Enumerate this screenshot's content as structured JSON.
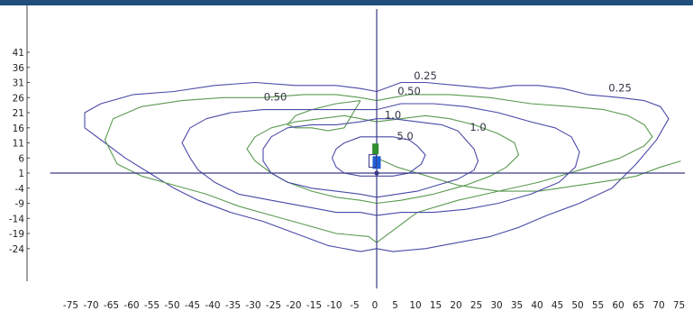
{
  "chart_data": {
    "type": "line",
    "title": "",
    "xlabel": "",
    "ylabel": "",
    "xlim": [
      -75,
      75
    ],
    "ylim": [
      -24,
      41
    ],
    "grid": false,
    "x_ticks": [
      -75,
      -70,
      -65,
      -60,
      -55,
      -50,
      -45,
      -40,
      -35,
      -30,
      -25,
      -20,
      -15,
      -10,
      -5,
      0,
      5,
      10,
      15,
      20,
      25,
      30,
      35,
      40,
      45,
      50,
      55,
      60,
      65,
      70,
      75
    ],
    "y_ticks": [
      41,
      36,
      31,
      26,
      21,
      16,
      11,
      6,
      1,
      -4,
      -9,
      -14,
      -19,
      -24
    ],
    "axis_cross": {
      "x": 0,
      "y": 1
    },
    "colors": {
      "blue": "#4a4aa8",
      "green": "#5a9a50",
      "axis": "#3a3a86",
      "header": "#1f4e7a",
      "marker_blue": "#1f5fd6",
      "marker_green": "#2f8f2f"
    },
    "contour_labels": [
      {
        "text": "0.25",
        "x": 12,
        "y": 32,
        "color": "blue"
      },
      {
        "text": "0.25",
        "x": 60,
        "y": 28,
        "color": "blue"
      },
      {
        "text": "0.50",
        "x": 8,
        "y": 27,
        "color": "blue"
      },
      {
        "text": "0.50",
        "x": -25,
        "y": 25,
        "color": "blue"
      },
      {
        "text": "1.0",
        "x": 4,
        "y": 19,
        "color": "blue"
      },
      {
        "text": "1.0",
        "x": 25,
        "y": 15,
        "color": "blue"
      },
      {
        "text": "5.0",
        "x": 7,
        "y": 12,
        "color": "blue"
      }
    ],
    "series": [
      {
        "color": "blue",
        "x": [
          0,
          6,
          12,
          20,
          28,
          34,
          40,
          46,
          52,
          60,
          66,
          70,
          72,
          69,
          64,
          58,
          50,
          42,
          35,
          28,
          20,
          12,
          4,
          0,
          -4,
          -12,
          -20,
          -28,
          -36,
          -44,
          -50,
          -56,
          -62,
          -67,
          -72,
          -72,
          -68,
          -60,
          -50,
          -40,
          -30,
          -20,
          -10,
          -4,
          0
        ],
        "y": [
          28,
          31,
          31,
          30,
          29,
          30,
          30,
          29,
          27,
          26,
          25,
          23,
          19,
          12,
          4,
          -4,
          -9,
          -13,
          -17,
          -20,
          -22,
          -24,
          -25,
          -24,
          -25,
          -23,
          -19,
          -15,
          -12,
          -8,
          -4,
          1,
          6,
          11,
          16,
          21,
          24,
          27,
          28,
          30,
          31,
          30,
          30,
          29,
          28
        ]
      },
      {
        "color": "green",
        "x": [
          0,
          8,
          18,
          28,
          38,
          48,
          56,
          62,
          66,
          68,
          66,
          60,
          50,
          40,
          30,
          20,
          10,
          2,
          0,
          -2,
          -10,
          -18,
          -26,
          -34,
          -42,
          -50,
          -58,
          -64,
          -67,
          -65,
          -58,
          -48,
          -38,
          -28,
          -18,
          -10,
          -4,
          0
        ],
        "y": [
          25,
          27,
          27,
          26,
          24,
          23,
          22,
          20,
          17,
          13,
          10,
          6,
          2,
          -2,
          -5,
          -8,
          -12,
          -20,
          -22,
          -20,
          -19,
          -16,
          -13,
          -10,
          -6,
          -3,
          0,
          4,
          12,
          19,
          23,
          25,
          26,
          26,
          27,
          27,
          26,
          25
        ]
      },
      {
        "color": "green",
        "x": [
          0,
          5,
          10,
          15,
          20,
          25,
          30,
          35,
          40,
          45,
          50,
          55,
          60,
          64,
          66,
          70,
          75
        ],
        "y": [
          6,
          3,
          1,
          -1,
          -3,
          -4,
          -5,
          -5,
          -5,
          -4,
          -3,
          -2,
          -1,
          0,
          1,
          3,
          5
        ]
      },
      {
        "color": "green",
        "x": [
          -4,
          -10,
          -16,
          -20,
          -22,
          -20,
          -16,
          -12,
          -8,
          -4
        ],
        "y": [
          25,
          24,
          22,
          20,
          17,
          16,
          16,
          15,
          16,
          25
        ]
      },
      {
        "color": "blue",
        "x": [
          0,
          6,
          14,
          22,
          30,
          38,
          44,
          48,
          50,
          49,
          45,
          38,
          30,
          22,
          14,
          6,
          0,
          -4,
          -10,
          -18,
          -26,
          -34,
          -40,
          -44,
          -46,
          -48,
          -46,
          -42,
          -36,
          -28,
          -20,
          -12,
          -4,
          0
        ],
        "y": [
          22,
          24,
          24,
          23,
          21,
          18,
          16,
          13,
          8,
          3,
          -2,
          -6,
          -9,
          -11,
          -12,
          -12,
          -13,
          -12,
          -12,
          -10,
          -8,
          -6,
          -2,
          2,
          6,
          11,
          16,
          19,
          21,
          22,
          22,
          22,
          22,
          22
        ]
      },
      {
        "color": "green",
        "x": [
          0,
          6,
          12,
          18,
          24,
          30,
          34,
          35,
          32,
          28,
          22,
          14,
          6,
          0,
          -4,
          -10,
          -16,
          -22,
          -26,
          -30,
          -32,
          -30,
          -26,
          -20,
          -14,
          -8,
          -4,
          0
        ],
        "y": [
          18,
          19,
          20,
          19,
          17,
          14,
          11,
          7,
          3,
          0,
          -3,
          -6,
          -8,
          -9,
          -8,
          -7,
          -5,
          -2,
          1,
          5,
          9,
          13,
          16,
          18,
          19,
          20,
          19,
          18
        ]
      },
      {
        "color": "blue",
        "x": [
          0,
          4,
          10,
          16,
          20,
          22,
          24,
          25,
          24,
          20,
          15,
          10,
          5,
          0,
          -4,
          -10,
          -16,
          -22,
          -26,
          -28,
          -28,
          -26,
          -22,
          -16,
          -10,
          -4,
          0
        ],
        "y": [
          19,
          19,
          18,
          17,
          15,
          12,
          9,
          5,
          2,
          -1,
          -3,
          -5,
          -6,
          -7,
          -6,
          -5,
          -4,
          -2,
          1,
          5,
          9,
          13,
          16,
          17,
          17,
          18,
          19
        ]
      },
      {
        "color": "blue",
        "x": [
          0,
          4,
          8,
          10,
          12,
          11,
          8,
          4,
          0,
          -4,
          -8,
          -10,
          -11,
          -10,
          -8,
          -4,
          0
        ],
        "y": [
          13,
          13,
          12,
          10,
          7,
          4,
          1,
          0,
          0,
          0,
          1,
          3,
          6,
          9,
          11,
          13,
          13
        ]
      }
    ],
    "markers": [
      {
        "shape": "square",
        "color": "marker_green",
        "x": -0.3,
        "y": 9
      },
      {
        "shape": "square",
        "color": "marker_blue",
        "x": 0,
        "y": 4.5
      },
      {
        "shape": "rect-outline",
        "color": "axis",
        "x": -1,
        "y": 5
      },
      {
        "shape": "dot",
        "color": "axis",
        "x": 0,
        "y": 1
      }
    ]
  }
}
